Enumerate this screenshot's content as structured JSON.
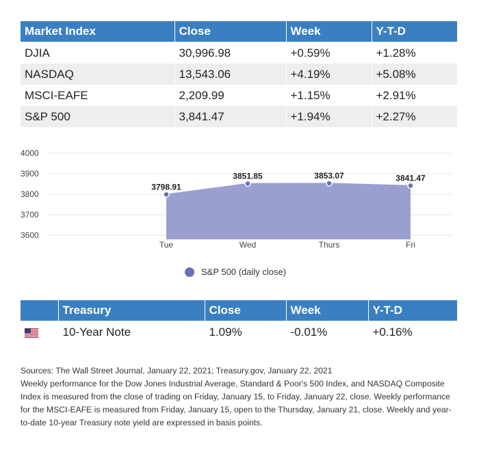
{
  "market_table": {
    "headers": [
      "Market Index",
      "Close",
      "Week",
      "Y-T-D"
    ],
    "rows": [
      [
        "DJIA",
        "30,996.98",
        "+0.59%",
        "+1.28%"
      ],
      [
        "NASDAQ",
        "13,543.06",
        "+4.19%",
        "+5.08%"
      ],
      [
        "MSCI-EAFE",
        "2,209.99",
        "+1.15%",
        "+2.91%"
      ],
      [
        "S&P 500",
        "3,841.47",
        "+1.94%",
        "+2.27%"
      ]
    ]
  },
  "chart_data": {
    "type": "area",
    "title": "",
    "xlabel": "",
    "ylabel": "",
    "categories": [
      "Tue",
      "Wed",
      "Thurs",
      "Fri"
    ],
    "series": [
      {
        "name": "S&P 500 (daily close)",
        "values": [
          3798.91,
          3851.85,
          3853.07,
          3841.47
        ],
        "labels": [
          "3798.91",
          "3851.85",
          "3853.07",
          "3841.47"
        ]
      }
    ],
    "yticks": [
      "3600",
      "3700",
      "3800",
      "3900",
      "4000"
    ],
    "ylim": [
      3580,
      4000
    ],
    "grid": true,
    "colors": {
      "fill": "#9b9fcf",
      "point": "#6a71b8"
    },
    "legend": "bottom-center"
  },
  "treasury_table": {
    "headers": [
      "",
      "Treasury",
      "Close",
      "Week",
      "Y-T-D"
    ],
    "row": {
      "flag": "us-flag-icon",
      "label": "10-Year Note",
      "close": "1.09%",
      "week": "-0.01%",
      "ytd": "+0.16%"
    }
  },
  "notes": {
    "sources": "Sources: The Wall Street Journal, January 22, 2021; Treasury.gov, January 22, 2021",
    "body": "Weekly performance for the Dow Jones Industrial Average, Standard & Poor's 500 Index, and NASDAQ Composite Index is measured from the close of trading on Friday, January 15, to Friday, January 22, close. Weekly performance for the MSCI-EAFE is measured from Friday, January 15, open to the Thursday, January 21, close. Weekly and year-to-date 10-year Treasury note yield are expressed in basis points."
  },
  "colors": {
    "header_bg": "#3a7fc1",
    "row_alt": "#eeeeee"
  }
}
